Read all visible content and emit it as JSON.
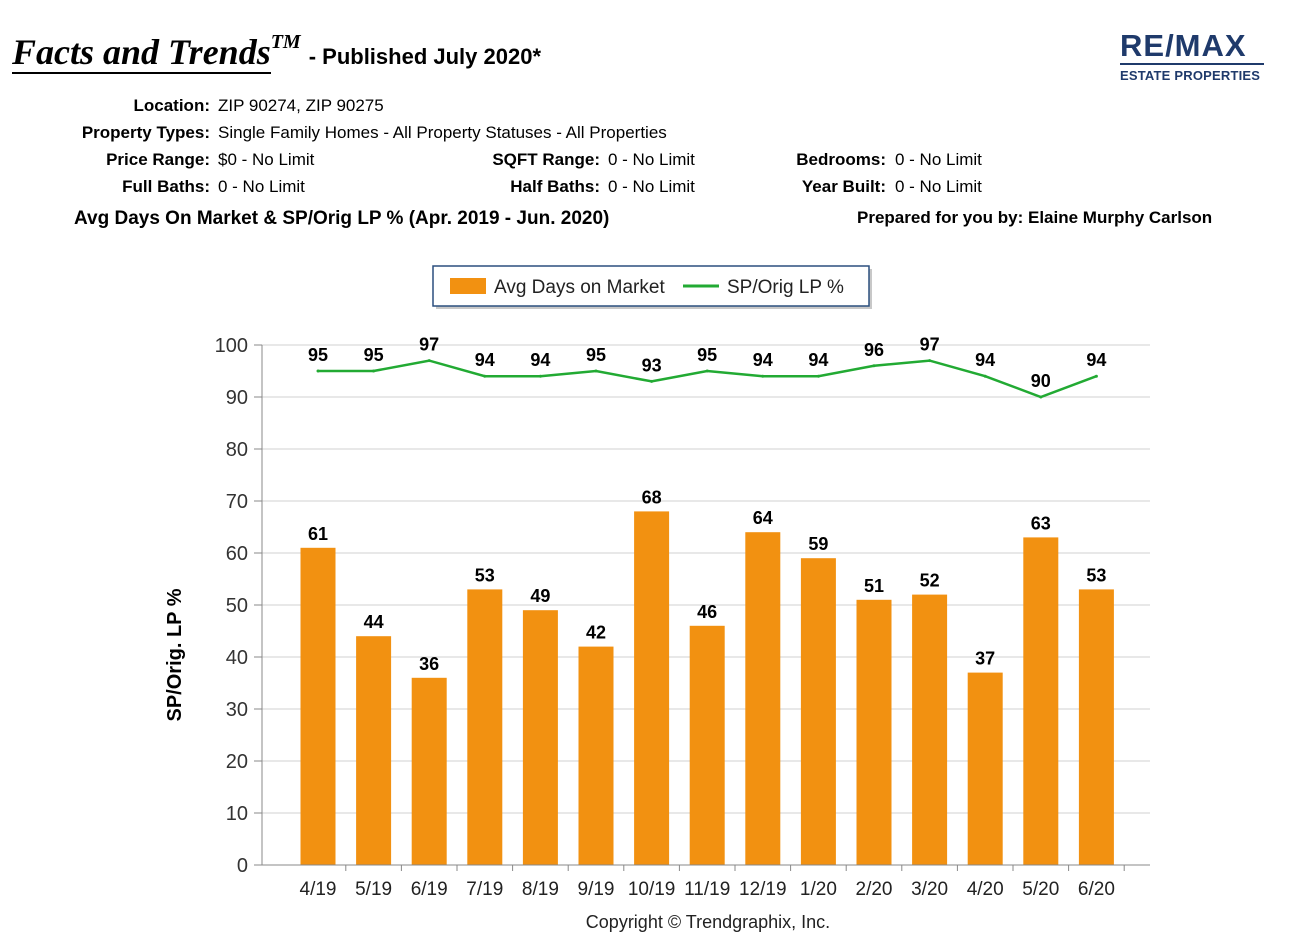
{
  "header": {
    "title": "Facts and Trends",
    "title_tm": "TM",
    "published": "- Published July 2020*"
  },
  "logo": {
    "main": "RE/MAX",
    "sub": "ESTATE PROPERTIES"
  },
  "criteria": {
    "location_label": "Location:",
    "location": "ZIP 90274, ZIP 90275",
    "property_types_label": "Property Types:",
    "property_types": "Single Family Homes - All Property Statuses - All Properties",
    "price_range_label": "Price Range:",
    "price_range": "$0 - No Limit",
    "sqft_range_label": "SQFT Range:",
    "sqft_range": "0 - No Limit",
    "bedrooms_label": "Bedrooms:",
    "bedrooms": "0 - No Limit",
    "full_baths_label": "Full Baths:",
    "full_baths": "0 - No Limit",
    "half_baths_label": "Half Baths:",
    "half_baths": "0 - No Limit",
    "year_built_label": "Year Built:",
    "year_built": "0 - No Limit"
  },
  "section_title": "Avg Days On Market & SP/Orig LP % (Apr. 2019 - Jun. 2020)",
  "prepared_by": "Prepared for you by: Elaine Murphy Carlson",
  "copyright": "Copyright © Trendgraphix, Inc.",
  "colors": {
    "bar": "#f29111",
    "line": "#22aa33",
    "grid": "#d0d0d0",
    "legend_border": "#2b4f7e",
    "logo": "#1f3a6b"
  },
  "chart_data": {
    "type": "bar",
    "ylabel": "SP/Orig. LP %",
    "xlabel": "",
    "ylim": [
      0,
      100
    ],
    "yticks": [
      0,
      10,
      20,
      30,
      40,
      50,
      60,
      70,
      80,
      90,
      100
    ],
    "grid": true,
    "legend_position": "top-center",
    "categories": [
      "4/19",
      "5/19",
      "6/19",
      "7/19",
      "8/19",
      "9/19",
      "10/19",
      "11/19",
      "12/19",
      "1/20",
      "2/20",
      "3/20",
      "4/20",
      "5/20",
      "6/20"
    ],
    "series": [
      {
        "name": "Avg Days on Market",
        "type": "bar",
        "values": [
          61,
          44,
          36,
          53,
          49,
          42,
          68,
          46,
          64,
          59,
          51,
          52,
          37,
          63,
          53
        ]
      },
      {
        "name": "SP/Orig LP %",
        "type": "line",
        "values": [
          95,
          95,
          97,
          94,
          94,
          95,
          93,
          95,
          94,
          94,
          96,
          97,
          94,
          90,
          94
        ]
      }
    ]
  }
}
